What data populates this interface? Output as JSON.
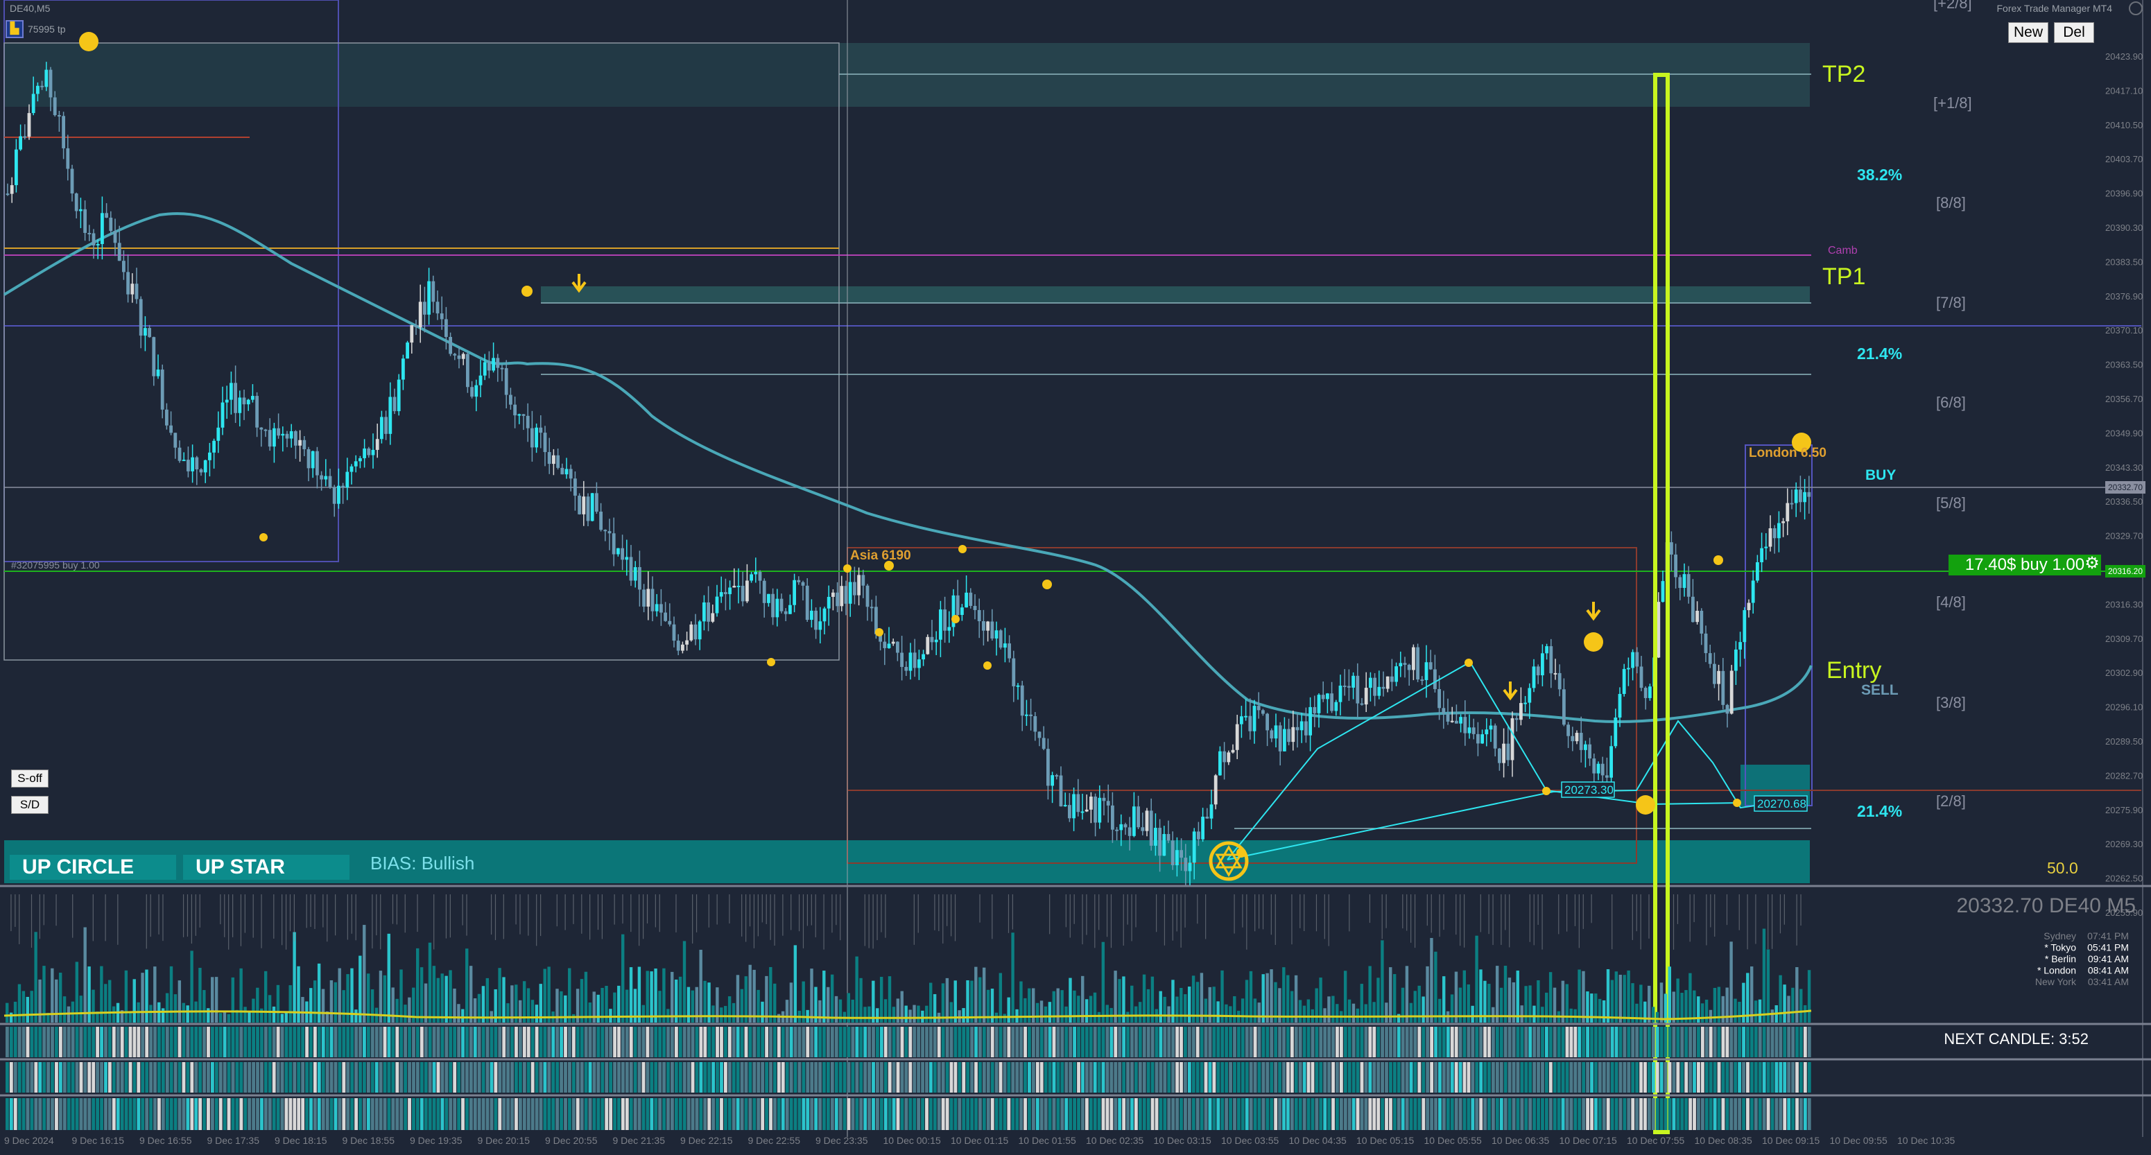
{
  "window": {
    "title": "DE40,M5",
    "manager_title": "Forex Trade Manager MT4"
  },
  "symbol_badge": {
    "icon": "chart-icon",
    "text": "75995 tp"
  },
  "toolbar": {
    "new_label": "New",
    "del_label": "Del"
  },
  "side_buttons": {
    "s_off": "S-off",
    "s_d": "S/D"
  },
  "chips": {
    "up_circle": "UP CIRCLE",
    "up_star": "UP STAR",
    "bias": "BIAS: Bullish"
  },
  "labels": {
    "tp2": "TP2",
    "tp1": "TP1",
    "entry": "Entry",
    "buy": "BUY",
    "sell": "SELL",
    "fib_38": "38.2%",
    "fib_21a": "21.4%",
    "fib_21b": "21.4%",
    "asia": "Asia 6190",
    "london": "London 6.50",
    "price_box_1": "20273.30",
    "price_box_2": "20270.68",
    "order_line": "#32075995 buy 1.00",
    "value_50": "50.0",
    "pivot_mark": "Camb",
    "position": "17.40$ buy 1.00"
  },
  "murrey": [
    "[+2/8]",
    "[+1/8]",
    "[8/8]",
    "[7/8]",
    "[6/8]",
    "[5/8]",
    "[4/8]",
    "[3/8]",
    "[2/8]"
  ],
  "price_axis": [
    "20423.90",
    "20417.10",
    "20410.50",
    "20403.70",
    "20396.90",
    "20390.30",
    "20383.50",
    "20376.90",
    "20370.10",
    "20363.50",
    "20356.70",
    "20349.90",
    "20343.30",
    "20336.50",
    "20329.70",
    "20323.10",
    "20316.30",
    "20309.70",
    "20302.90",
    "20296.10",
    "20289.50",
    "20282.70",
    "20275.90",
    "20269.30",
    "20262.50",
    "20255.90"
  ],
  "current_price": "20332.70",
  "order_price": "20316.20",
  "info": {
    "header": "20332.70 DE40 M5",
    "sessions": [
      {
        "city": "Sydney",
        "time": "07:41 PM"
      },
      {
        "city": "* Tokyo",
        "time": "05:41 PM"
      },
      {
        "city": "* Berlin",
        "time": "09:41 AM"
      },
      {
        "city": "* London",
        "time": "08:41 AM"
      },
      {
        "city": "New York",
        "time": "03:41 AM"
      }
    ],
    "next_candle": "NEXT CANDLE: 3:52"
  },
  "time_axis": [
    "9 Dec 2024",
    "9 Dec 16:15",
    "9 Dec 16:55",
    "9 Dec 17:35",
    "9 Dec 18:15",
    "9 Dec 18:55",
    "9 Dec 19:35",
    "9 Dec 20:15",
    "9 Dec 20:55",
    "9 Dec 21:35",
    "9 Dec 22:15",
    "9 Dec 22:55",
    "9 Dec 23:35",
    "10 Dec 00:15",
    "10 Dec 01:15",
    "10 Dec 01:55",
    "10 Dec 02:35",
    "10 Dec 03:15",
    "10 Dec 03:55",
    "10 Dec 04:35",
    "10 Dec 05:15",
    "10 Dec 05:55",
    "10 Dec 06:35",
    "10 Dec 07:15",
    "10 Dec 07:55",
    "10 Dec 08:35",
    "10 Dec 09:15",
    "10 Dec 09:55",
    "10 Dec 10:35"
  ],
  "colors": {
    "background": "#1e2636",
    "bull": "#2ee6f0",
    "bear": "#6d9cb6",
    "neutral": "#d8d8d8",
    "teal": "#0b7f82",
    "highlight": "#c8f520",
    "gold": "#f5c518"
  },
  "chart_data": {
    "type": "candlestick",
    "symbol": "DE40",
    "timeframe": "M5",
    "ylim": [
      20255.9,
      20423.9
    ],
    "close_path": [
      20390,
      20405,
      20412,
      20395,
      20380,
      20385,
      20372,
      20360,
      20345,
      20335,
      20340,
      20350,
      20348,
      20342,
      20345,
      20338,
      20330,
      20336,
      20340,
      20348,
      20365,
      20372,
      20360,
      20352,
      20358,
      20350,
      20342,
      20338,
      20330,
      20328,
      20320,
      20315,
      20308,
      20302,
      20305,
      20310,
      20312,
      20314,
      20308,
      20312,
      20306,
      20310,
      20314,
      20303,
      20298,
      20300,
      20305,
      20310,
      20308,
      20302,
      20292,
      20280,
      20272,
      20268,
      20270,
      20266,
      20268,
      20262,
      20258,
      20265,
      20280,
      20285,
      20288,
      20282,
      20286,
      20290,
      20293,
      20292,
      20295,
      20300,
      20296,
      20290,
      20286,
      20284,
      20280,
      20293,
      20300,
      20285,
      20280,
      20276,
      20300,
      20290,
      20320,
      20312,
      20300,
      20290,
      20310,
      20322,
      20330,
      20333
    ],
    "session_boxes": [
      {
        "name": "Asia 6190"
      },
      {
        "name": "London 6.50"
      }
    ],
    "levels": {
      "tp1": 20372.0,
      "tp2": 20412.0,
      "entry": 20297.0,
      "order": 20316.2,
      "current": 20332.7
    }
  }
}
